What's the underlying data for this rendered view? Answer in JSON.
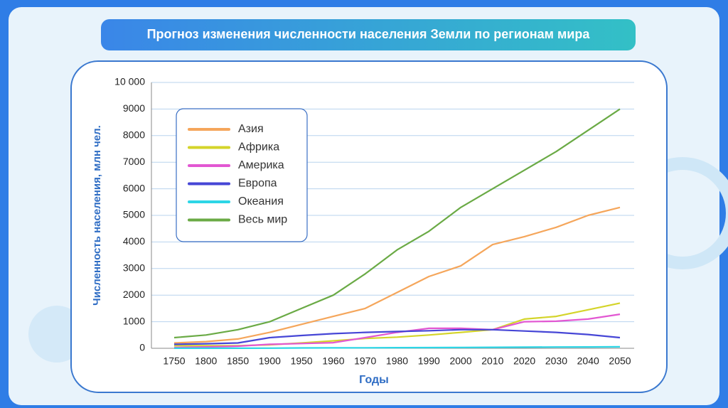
{
  "chart_data": {
    "type": "line",
    "title": "Прогноз изменения численности населения Земли по регионам мира",
    "x_label": "Годы",
    "y_label": "Численность населения, млн чел.",
    "categories": [
      "1750",
      "1800",
      "1850",
      "1900",
      "1950",
      "1960",
      "1970",
      "1980",
      "1990",
      "2000",
      "2010",
      "2020",
      "2030",
      "2040",
      "2050"
    ],
    "ylim": [
      0,
      10000
    ],
    "yticks": [
      0,
      1000,
      2000,
      3000,
      4000,
      5000,
      6000,
      7000,
      8000,
      9000,
      {
        "value": 10000,
        "label": "10 000"
      }
    ],
    "grid": true,
    "legend": "upper-left",
    "series": [
      {
        "name": "Азия",
        "color": "#f5a65b",
        "values": [
          200,
          250,
          350,
          600,
          900,
          1200,
          1500,
          2100,
          2700,
          3100,
          3900,
          4200,
          4550,
          5000,
          5300
        ]
      },
      {
        "name": "Африка",
        "color": "#d4d42a",
        "values": [
          100,
          100,
          100,
          130,
          200,
          280,
          370,
          420,
          500,
          600,
          700,
          1100,
          1200,
          1450,
          1700
        ]
      },
      {
        "name": "Америка",
        "color": "#e257d2",
        "values": [
          30,
          50,
          80,
          150,
          180,
          210,
          400,
          600,
          750,
          750,
          700,
          1000,
          1020,
          1100,
          1280
        ]
      },
      {
        "name": "Европа",
        "color": "#4646d6",
        "values": [
          150,
          170,
          200,
          400,
          480,
          550,
          600,
          630,
          660,
          700,
          700,
          650,
          600,
          520,
          400
        ]
      },
      {
        "name": "Океания",
        "color": "#2dd6e6",
        "values": [
          2,
          2,
          2,
          6,
          13,
          16,
          19,
          23,
          27,
          31,
          37,
          42,
          47,
          52,
          57
        ]
      },
      {
        "name": "Весь мир",
        "color": "#6aaa45",
        "values": [
          400,
          500,
          700,
          1000,
          1500,
          2000,
          2800,
          3700,
          4400,
          5300,
          6000,
          6700,
          7400,
          8200,
          9000
        ]
      }
    ]
  }
}
